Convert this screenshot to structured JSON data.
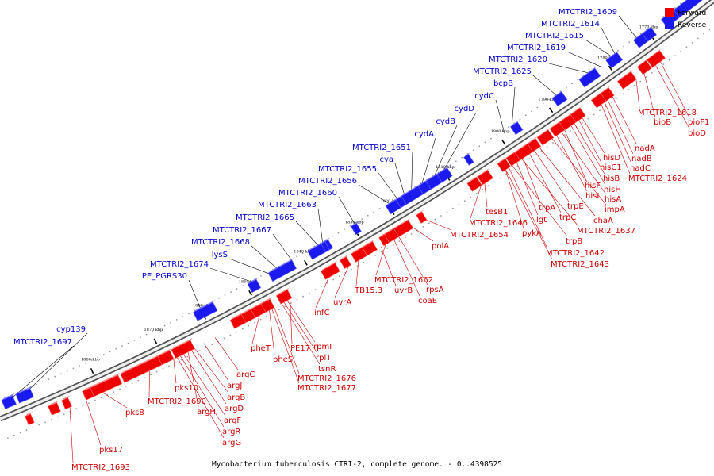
{
  "caption": "Mycobacterium tuberculosis CTRI-2, complete genome. - 0..4398525",
  "legend": {
    "forward": {
      "label": "Forward",
      "color": "#ee0000"
    },
    "reverse": {
      "label": "Reverse",
      "color": "#1a1aee"
    }
  },
  "ticks": [
    "1770 kbp",
    "1780 kbp",
    "1790 kbp",
    "1800 kbp",
    "1810 kbp",
    "1820 kbp",
    "1830 kbp",
    "1840 kbp",
    "1850 kbp",
    "1860 kbp",
    "1870 kbp",
    "1880 kbp"
  ],
  "reverse_labels": [
    "MTCTRI2_1609",
    "MTCTRI2_1614",
    "MTCTRI2_1615",
    "MTCTRI2_1619",
    "MTCTRI2_1620",
    "MTCTRI2_1625",
    "bcpB",
    "cydC",
    "cydD",
    "cydB",
    "cydA",
    "MTCTRI2_1651",
    "cya",
    "MTCTRI2_1655",
    "MTCTRI2_1656",
    "MTCTRI2_1660",
    "MTCTRI2_1663",
    "MTCTRI2_1665",
    "MTCTRI2_1667",
    "MTCTRI2_1668",
    "lysS",
    "MTCTRI2_1674",
    "PE_PGRS30",
    "cyp139",
    "MTCTRI2_1697"
  ],
  "forward_labels": [
    "MTCTRI2_1618",
    "bioB",
    "bioF1",
    "bioD",
    "nadA",
    "nadB",
    "nadC",
    "MTCTRI2_1624",
    "hisD",
    "hisC1",
    "hisB",
    "hisH",
    "hisF",
    "hisA",
    "hisI",
    "impA",
    "chaA",
    "trpE",
    "trpC",
    "trpA",
    "lgt",
    "MTCTRI2_1637",
    "trpB",
    "tesB1",
    "MTCTRI2_1646",
    "pykA",
    "MTCTRI2_1642",
    "MTCTRI2_1643",
    "MTCTRI2_1654",
    "polA",
    "MTCTRI2_1662",
    "rpsA",
    "uvrB",
    "coaE",
    "TB15.3",
    "uvrA",
    "infC",
    "PE17",
    "rpmI",
    "rplT",
    "tsnR",
    "pheT",
    "pheS",
    "MTCTRI2_1676",
    "MTCTRI2_1677",
    "argC",
    "argJ",
    "argB",
    "pks10",
    "argD",
    "MTCTRI2_1690",
    "argH",
    "argF",
    "argR",
    "argG",
    "pks8",
    "pks17",
    "MTCTRI2_1693"
  ]
}
